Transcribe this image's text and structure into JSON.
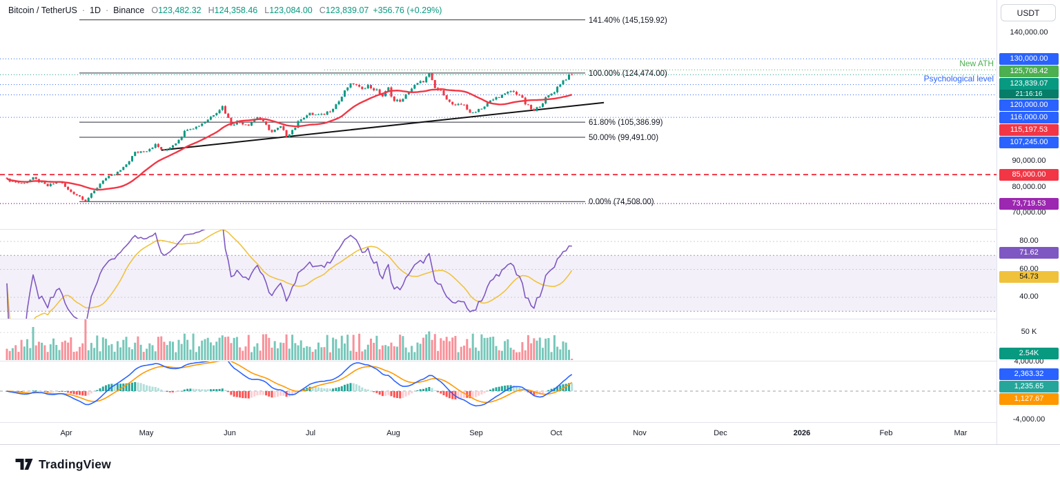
{
  "colors": {
    "up": "#089981",
    "down": "#f23645",
    "ma": "#f23645",
    "blue_level": "#2962ff",
    "green_level": "#4caf50",
    "current": "#089981",
    "red_level": "#f23645",
    "purple_level": "#9c27b0",
    "rsi": "#7e57c2",
    "rsi_ma": "#f0c23c",
    "macd_line": "#2962ff",
    "macd_signal": "#ff9800",
    "hist_up": "#26a69a",
    "hist_up_weak": "#b2dfdb",
    "hist_down": "#ff5252",
    "hist_down_weak": "#ffcdd2",
    "vol_up": "rgba(8,153,129,0.55)",
    "vol_down": "rgba(242,54,69,0.55)",
    "fib_line": "#2a2e39",
    "trend_line": "#111111",
    "text": "#131722",
    "muted": "#787b86",
    "grid": "#e0e3eb"
  },
  "header": {
    "symbol": "Bitcoin / TetherUS",
    "separator": "·",
    "interval": "1D",
    "exchange": "Binance",
    "ohlc": [
      {
        "label": "O",
        "value": "123,482.32"
      },
      {
        "label": "H",
        "value": "124,358.46"
      },
      {
        "label": "L",
        "value": "123,084.00"
      },
      {
        "label": "C",
        "value": "123,839.07"
      }
    ],
    "change": "+356.76 (+0.29%)",
    "currency_button": "USDT"
  },
  "annotations": {
    "new_ath": "New ATH",
    "psychological_level": "Psychological level"
  },
  "fib_levels": [
    {
      "label": "141.40% (145,159.92)",
      "value": 145159.92
    },
    {
      "label": "100.00% (124,474.00)",
      "value": 124474.0
    },
    {
      "label": "61.80% (105,386.99)",
      "value": 105386.99
    },
    {
      "label": "50.00% (99,491.00)",
      "value": 99491.0
    },
    {
      "label": "0.00% (74,508.00)",
      "value": 74508.0
    }
  ],
  "price_axis": {
    "plain": [
      {
        "text": "140,000.00",
        "value": 140000
      },
      {
        "text": "90,000.00",
        "value": 90000
      },
      {
        "text": "80,000.00",
        "value": 80000
      },
      {
        "text": "70,000.00",
        "value": 70000
      }
    ],
    "badges": [
      {
        "text": "130,000.00",
        "value": 130000,
        "bg": "#2962ff",
        "fg": "#fff"
      },
      {
        "text": "125,708.42",
        "value": 125708.42,
        "bg": "#4caf50",
        "fg": "#fff"
      },
      {
        "text": "123,839.07",
        "value": 123839.07,
        "bg": "#089981",
        "fg": "#fff",
        "sub": "21:16:16"
      },
      {
        "text": "120,000.00",
        "value": 120000,
        "bg": "#2962ff",
        "fg": "#fff"
      },
      {
        "text": "116,000.00",
        "value": 116000,
        "bg": "#2962ff",
        "fg": "#fff"
      },
      {
        "text": "115,197.53",
        "value": 115197.53,
        "bg": "#f23645",
        "fg": "#fff"
      },
      {
        "text": "107,245.00",
        "value": 107245,
        "bg": "#2962ff",
        "fg": "#fff"
      },
      {
        "text": "85,000.00",
        "value": 85000,
        "bg": "#f23645",
        "fg": "#fff"
      },
      {
        "text": "73,719.53",
        "value": 73719.53,
        "bg": "#9c27b0",
        "fg": "#fff"
      }
    ]
  },
  "rsi_axis": {
    "plain": [
      {
        "text": "80.00",
        "value": 80
      },
      {
        "text": "60.00",
        "value": 60
      },
      {
        "text": "40.00",
        "value": 40
      }
    ],
    "badges": [
      {
        "text": "71.62",
        "value": 71.62,
        "bg": "#7e57c2",
        "fg": "#fff"
      },
      {
        "text": "54.73",
        "value": 54.73,
        "bg": "#f0c23c",
        "fg": "#131722"
      }
    ]
  },
  "volume_axis": {
    "plain": [
      {
        "text": "50 K",
        "value": 50000
      }
    ],
    "badges": [
      {
        "text": "2.54K",
        "value": 2540,
        "bg": "#089981",
        "fg": "#fff"
      }
    ]
  },
  "macd_axis": {
    "plain": [
      {
        "text": "4,000.00",
        "value": 4000
      },
      {
        "text": "-4,000.00",
        "value": -4000
      }
    ],
    "badges": [
      {
        "text": "2,363.32",
        "value": 2363.32,
        "bg": "#2962ff",
        "fg": "#fff"
      },
      {
        "text": "1,235.65",
        "value": 1235.65,
        "bg": "#26a69a",
        "fg": "#fff"
      },
      {
        "text": "1,127.67",
        "value": 1127.67,
        "bg": "#ff9800",
        "fg": "#fff"
      }
    ]
  },
  "time_axis": {
    "labels": [
      {
        "text": "Apr"
      },
      {
        "text": "May"
      },
      {
        "text": "Jun"
      },
      {
        "text": "Jul"
      },
      {
        "text": "Aug"
      },
      {
        "text": "Sep"
      },
      {
        "text": "Oct"
      },
      {
        "text": "Nov"
      },
      {
        "text": "Dec"
      },
      {
        "text": "2026",
        "bold": true
      },
      {
        "text": "Feb"
      },
      {
        "text": "Mar"
      }
    ]
  },
  "logo": {
    "text": "TradingView"
  },
  "chart_data": {
    "type": "candlestick",
    "title": "Bitcoin / TetherUS · 1D · Binance",
    "interval": "1D",
    "legend": [
      "price candles",
      "red MA",
      "fib retracement",
      "RSI + MA",
      "volume",
      "MACD"
    ],
    "last_candle": {
      "open": 123482.32,
      "high": 124358.46,
      "low": 123084.0,
      "close": 123839.07,
      "change": 356.76,
      "change_pct": 0.29
    },
    "visible_price_range": [
      64000,
      145500
    ],
    "candle_count": 195,
    "price_path_anchors": [
      [
        0,
        83000
      ],
      [
        5,
        81500
      ],
      [
        9,
        83500
      ],
      [
        14,
        80500
      ],
      [
        18,
        82500
      ],
      [
        21,
        79000
      ],
      [
        25,
        76500
      ],
      [
        27,
        74800
      ],
      [
        30,
        78500
      ],
      [
        33,
        83000
      ],
      [
        37,
        85000
      ],
      [
        40,
        87500
      ],
      [
        44,
        93500
      ],
      [
        48,
        94500
      ],
      [
        51,
        96500
      ],
      [
        54,
        94000
      ],
      [
        58,
        97500
      ],
      [
        62,
        103000
      ],
      [
        65,
        103500
      ],
      [
        69,
        106500
      ],
      [
        72,
        109500
      ],
      [
        74,
        111500
      ],
      [
        77,
        104500
      ],
      [
        79,
        105500
      ],
      [
        83,
        104500
      ],
      [
        86,
        107500
      ],
      [
        89,
        104000
      ],
      [
        91,
        101500
      ],
      [
        94,
        103500
      ],
      [
        96,
        100000
      ],
      [
        99,
        103500
      ],
      [
        101,
        107000
      ],
      [
        104,
        108500
      ],
      [
        108,
        108000
      ],
      [
        111,
        110000
      ],
      [
        114,
        113500
      ],
      [
        117,
        119000
      ],
      [
        119,
        120500
      ],
      [
        121,
        118500
      ],
      [
        124,
        119500
      ],
      [
        127,
        117500
      ],
      [
        129,
        115500
      ],
      [
        131,
        118500
      ],
      [
        133,
        113500
      ],
      [
        136,
        114000
      ],
      [
        138,
        117500
      ],
      [
        140,
        119500
      ],
      [
        143,
        121500
      ],
      [
        145,
        123800
      ],
      [
        147,
        118500
      ],
      [
        150,
        116500
      ],
      [
        152,
        113000
      ],
      [
        154,
        111500
      ],
      [
        157,
        112500
      ],
      [
        159,
        108500
      ],
      [
        162,
        110500
      ],
      [
        164,
        111500
      ],
      [
        166,
        113500
      ],
      [
        169,
        115500
      ],
      [
        171,
        116000
      ],
      [
        173,
        117500
      ],
      [
        176,
        116000
      ],
      [
        178,
        112500
      ],
      [
        181,
        109500
      ],
      [
        183,
        112000
      ],
      [
        185,
        114500
      ],
      [
        188,
        117500
      ],
      [
        190,
        120500
      ],
      [
        192,
        122500
      ],
      [
        194,
        123839
      ]
    ],
    "horizontal_levels": {
      "blue_dotted": [
        130000,
        120000,
        116000,
        107245
      ],
      "green_dotted_new_ath": 125708.42,
      "current_price_dotted": 123839.07,
      "red_dashed": 85000,
      "purple_dotted": 73719.53
    },
    "fib_retracement": {
      "p0": 74508.0,
      "p50": 99491.0,
      "p61_8": 105386.99,
      "p100": 124474.0,
      "p141_4": 145159.92
    },
    "trendline": {
      "from_index": 53,
      "from_price": 94500,
      "to_index": 205,
      "to_price": 113000
    },
    "volume_spikes": {
      "9": 60000,
      "27": 98000,
      "64": 48000,
      "117": 46000,
      "145": 52000
    },
    "indicators": {
      "ma_red_last": 115197.53,
      "rsi_last": 71.62,
      "rsi_ma_last": 54.73,
      "rsi_band": [
        30,
        70
      ],
      "rsi_grid": [
        80,
        60,
        40
      ],
      "volume_last": 2540,
      "volume_grid": 50000,
      "macd": {
        "macd_last": 2363.32,
        "signal_last": 1127.67,
        "histogram_last": 1235.65,
        "grid": [
          4000,
          -4000
        ]
      }
    }
  }
}
